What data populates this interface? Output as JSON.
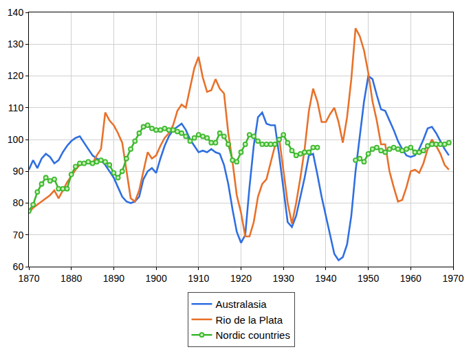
{
  "chart_data": {
    "type": "line",
    "x": [
      1870,
      1871,
      1872,
      1873,
      1874,
      1875,
      1876,
      1877,
      1878,
      1879,
      1880,
      1881,
      1882,
      1883,
      1884,
      1885,
      1886,
      1887,
      1888,
      1889,
      1890,
      1891,
      1892,
      1893,
      1894,
      1895,
      1896,
      1897,
      1898,
      1899,
      1900,
      1901,
      1902,
      1903,
      1904,
      1905,
      1906,
      1907,
      1908,
      1909,
      1910,
      1911,
      1912,
      1913,
      1914,
      1915,
      1916,
      1917,
      1918,
      1919,
      1920,
      1921,
      1922,
      1923,
      1924,
      1925,
      1926,
      1927,
      1928,
      1929,
      1930,
      1931,
      1932,
      1933,
      1934,
      1935,
      1936,
      1937,
      1938,
      1939,
      1940,
      1941,
      1942,
      1943,
      1944,
      1945,
      1946,
      1947,
      1948,
      1949,
      1950,
      1951,
      1952,
      1953,
      1954,
      1955,
      1956,
      1957,
      1958,
      1959,
      1960,
      1961,
      1962,
      1963,
      1964,
      1965,
      1966,
      1967,
      1968,
      1969
    ],
    "series": [
      {
        "name": "Australasia",
        "color": "#2f6fe0",
        "line_style": "solid",
        "values": [
          90.5,
          93.5,
          91,
          94,
          95.5,
          94.5,
          92.5,
          93.5,
          96,
          98,
          99.5,
          100.5,
          101,
          99,
          97,
          95,
          94,
          93.5,
          92,
          90,
          88,
          85,
          82,
          80.5,
          80,
          80.5,
          82,
          87.5,
          90,
          91,
          89.5,
          94,
          98,
          101,
          103,
          104,
          105,
          103,
          100,
          98,
          96,
          96.5,
          96,
          97,
          96,
          95.5,
          92,
          86,
          78,
          71,
          67.5,
          70,
          85,
          98,
          107,
          108.5,
          105,
          104.5,
          104.5,
          95,
          85,
          74,
          72.5,
          76,
          82,
          88,
          95,
          95.5,
          89,
          82,
          76,
          70,
          64,
          62,
          63,
          67,
          76,
          90,
          101,
          112,
          120,
          119,
          114,
          109.5,
          109,
          106,
          103,
          99.5,
          97,
          95,
          94.5,
          95,
          97,
          100,
          103.5,
          104,
          102,
          99.5,
          97,
          95
        ]
      },
      {
        "name": "Rio de la Plata",
        "color": "#e8712a",
        "line_style": "solid",
        "values": [
          77,
          78.5,
          79.5,
          80.5,
          81.5,
          82.5,
          84,
          81.5,
          84,
          86.5,
          88.5,
          90.5,
          92,
          92.5,
          92.5,
          92.5,
          95,
          97,
          108.5,
          106,
          104.5,
          102,
          99,
          90,
          81.5,
          80.5,
          84,
          90,
          96,
          94,
          95,
          98,
          100.5,
          102,
          104.5,
          109,
          111,
          110,
          116.5,
          122.5,
          126,
          119.5,
          115,
          115.5,
          119,
          116,
          114.5,
          102,
          93,
          82.5,
          77,
          69.5,
          69.5,
          74,
          82,
          86,
          87.5,
          93,
          98,
          100.5,
          90,
          80,
          73.5,
          80,
          88,
          97,
          109,
          116,
          112,
          105.5,
          105.5,
          108,
          110,
          105.5,
          99,
          107,
          119,
          135,
          132.5,
          128,
          121,
          112,
          106,
          98.5,
          98.5,
          90,
          85,
          80.5,
          81,
          85,
          90,
          90.5,
          89.5,
          92.5,
          97,
          100,
          98,
          95.5,
          92,
          90.5
        ]
      },
      {
        "name": "Nordic countries",
        "color": "#3cb82e",
        "line_style": "solid",
        "marker": "circle-open",
        "values": [
          77.5,
          79.5,
          83.5,
          86,
          88,
          87,
          87.5,
          84.5,
          84.5,
          84.5,
          89,
          91.5,
          92.5,
          92.5,
          93,
          92.5,
          93,
          93.5,
          93,
          92,
          89.5,
          88,
          90,
          94,
          97,
          99.5,
          102,
          104,
          104.5,
          103.5,
          103,
          103,
          103.5,
          103,
          103,
          102.5,
          102,
          101,
          99.5,
          100.5,
          101.5,
          101,
          100.5,
          99,
          99,
          102,
          101,
          98.5,
          93.5,
          93,
          96,
          98.5,
          101.5,
          101,
          99.5,
          98.5,
          98.5,
          98.5,
          98.5,
          100,
          101.5,
          99,
          96.5,
          95,
          95.5,
          96,
          96,
          97.5,
          97.5,
          null,
          null,
          null,
          null,
          null,
          null,
          null,
          null,
          93.5,
          94,
          93,
          95.5,
          97,
          97.5,
          96.5,
          96,
          97,
          97.5,
          97,
          96.5,
          97,
          97.5,
          96,
          96,
          96.5,
          98,
          98.5,
          98.5,
          98.5,
          98.5,
          99
        ]
      }
    ],
    "xlim": [
      1870,
      1970
    ],
    "xticks": [
      1870,
      1880,
      1890,
      1900,
      1910,
      1920,
      1930,
      1940,
      1950,
      1960,
      1970
    ],
    "ylim": [
      60,
      140
    ],
    "yticks": [
      60,
      70,
      80,
      90,
      100,
      110,
      120,
      130,
      140
    ],
    "grid": true,
    "legend": "bottom"
  }
}
